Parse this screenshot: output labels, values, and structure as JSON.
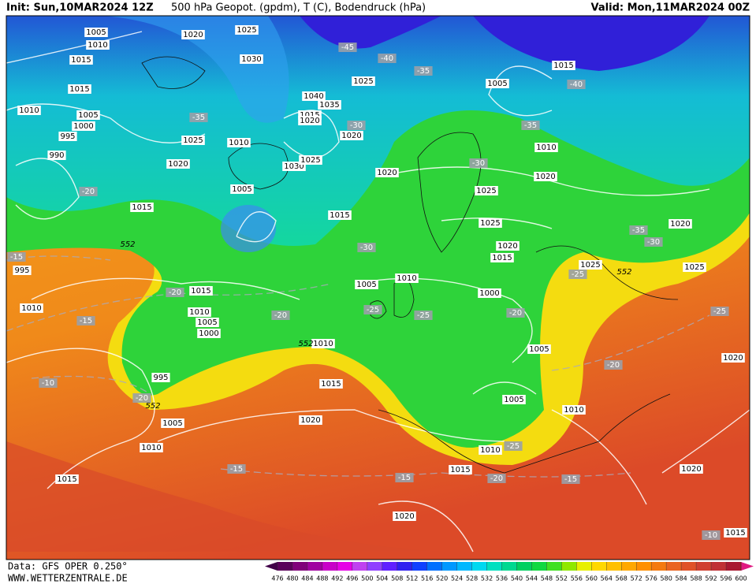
{
  "header": {
    "init": "Init: Sun,10MAR2024 12Z",
    "title": "500 hPa Geopot. (gpdm), T (C), Bodendruck (hPa)",
    "valid": "Valid: Mon,11MAR2024 00Z"
  },
  "footer": {
    "data": "Data: GFS OPER 0.250°",
    "site": "WWW.WETTERZENTRALE.DE"
  },
  "colorbar": {
    "ticks": [
      476,
      480,
      484,
      488,
      492,
      496,
      500,
      504,
      508,
      512,
      516,
      520,
      524,
      528,
      532,
      536,
      540,
      544,
      548,
      552,
      556,
      560,
      564,
      568,
      572,
      576,
      580,
      584,
      588,
      592,
      596,
      600
    ],
    "colors": [
      "#5a005a",
      "#80007a",
      "#a000a0",
      "#c800c8",
      "#e600e6",
      "#c040f0",
      "#9040ff",
      "#6020ff",
      "#3020f0",
      "#1040ff",
      "#0070ff",
      "#0098ff",
      "#00b8ff",
      "#00d8f0",
      "#00e0c0",
      "#00d890",
      "#00d060",
      "#10d840",
      "#40e020",
      "#90e800",
      "#e8f000",
      "#ffd800",
      "#ffc000",
      "#ffa800",
      "#ff9000",
      "#f47a10",
      "#ea6420",
      "#e05228",
      "#d04030",
      "#c03034",
      "#a81830"
    ],
    "under": "#400048",
    "over": "#e01880"
  },
  "map": {
    "pressure_labels": [
      "1005",
      "1010",
      "1015",
      "1020",
      "1025",
      "1030",
      "1015",
      "1010",
      "1005",
      "1000",
      "995",
      "990",
      "1025",
      "1010",
      "1020",
      "1030",
      "1025",
      "1040",
      "1035",
      "1015",
      "1020",
      "1020",
      "1025",
      "1005",
      "1015",
      "1015",
      "1020",
      "1005",
      "1015",
      "1010",
      "1020",
      "1025",
      "1025",
      "1020",
      "1015",
      "1020",
      "1025",
      "1025",
      "1010",
      "1005",
      "1000",
      "995",
      "1010",
      "1015",
      "1010",
      "1005",
      "1000",
      "1010",
      "1005",
      "995",
      "1015",
      "1005",
      "1010",
      "1005",
      "1020",
      "1010",
      "1015",
      "1010",
      "1015",
      "1020",
      "1020",
      "1020",
      "1015"
    ],
    "temperature_labels": [
      "-45",
      "-40",
      "-35",
      "-40",
      "-35",
      "-30",
      "-35",
      "-30",
      "-20",
      "-30",
      "-35",
      "-30",
      "-25",
      "-15",
      "-20",
      "-20",
      "-25",
      "-25",
      "-20",
      "-15",
      "-25",
      "-20",
      "-10",
      "-20",
      "-15",
      "-15",
      "-20",
      "-15",
      "-25",
      "-10"
    ],
    "height_labels": [
      "552",
      "552",
      "552",
      "552"
    ]
  }
}
